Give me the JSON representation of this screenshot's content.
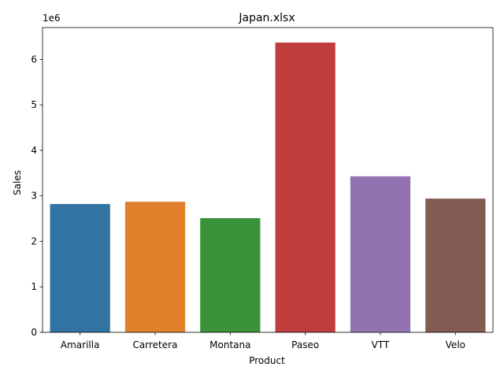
{
  "chart_data": {
    "type": "bar",
    "title": "Japan.xlsx",
    "xlabel": "Product",
    "ylabel": "Sales",
    "y_offset_label": "1e6",
    "categories": [
      "Amarilla",
      "Carretera",
      "Montana",
      "Paseo",
      "VTT",
      "Velo"
    ],
    "values": [
      2820000,
      2870000,
      2510000,
      6370000,
      3430000,
      2940000
    ],
    "colors": [
      "#3274a1",
      "#e1812c",
      "#3a923a",
      "#c03d3e",
      "#9372b2",
      "#845b53"
    ],
    "ylim": [
      0,
      6700000
    ],
    "yticks": [
      0,
      1000000,
      2000000,
      3000000,
      4000000,
      5000000,
      6000000
    ],
    "ytick_labels": [
      "0",
      "1",
      "2",
      "3",
      "4",
      "5",
      "6"
    ],
    "grid": false,
    "legend": false
  }
}
